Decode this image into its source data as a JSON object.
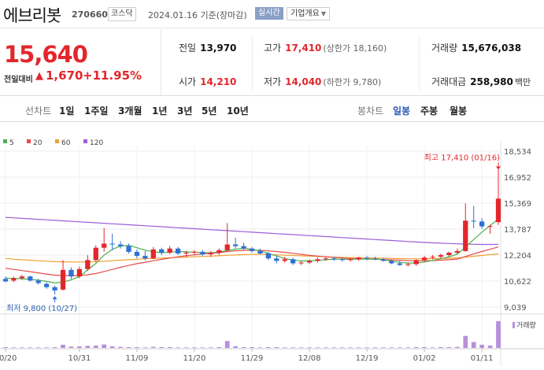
{
  "header": {
    "name": "에브리봇",
    "code": "270660",
    "market": "코스닥",
    "date_info": "2024.01.16 기준(장마감)",
    "realtime": "실시간",
    "company_info": "기업개요"
  },
  "quote": {
    "price": "15,640",
    "change_label": "전일대비",
    "change_arrow": "▲",
    "change": "1,670",
    "change_pct": "+11.95%",
    "prev_close": {
      "label": "전일",
      "value": "13,970"
    },
    "open": {
      "label": "시가",
      "value": "14,210"
    },
    "high": {
      "label": "고가",
      "value": "17,410",
      "sub": "(상한가 18,160)"
    },
    "low": {
      "label": "저가",
      "value": "14,040",
      "sub": "(하한가 9,780)"
    },
    "volume": {
      "label": "거래량",
      "value": "15,676,038"
    },
    "amount": {
      "label": "거래대금",
      "value": "258,980",
      "unit": "백만"
    }
  },
  "tabs": {
    "line_label": "선차트",
    "line_tabs": [
      "1일",
      "1주일",
      "3개월",
      "1년",
      "3년",
      "5년",
      "10년"
    ],
    "candle_label": "봉차트",
    "candle_tabs": [
      "일봉",
      "주봉",
      "월봉"
    ],
    "active_candle": "일봉"
  },
  "colors": {
    "up": "#e3262b",
    "down": "#2f6fd6",
    "ma5": "#4caf50",
    "ma20": "#e84b4b",
    "ma60": "#f0a030",
    "ma120": "#9b5fd8",
    "volume": "#b68fdc"
  },
  "chart_data": {
    "type": "candlestick",
    "legend": [
      {
        "name": "5",
        "color": "#4caf50"
      },
      {
        "name": "20",
        "color": "#e84b4b"
      },
      {
        "name": "60",
        "color": "#f0a030"
      },
      {
        "name": "120",
        "color": "#9b5fd8"
      }
    ],
    "y_ticks": [
      "18,534",
      "16,952",
      "15,369",
      "13,787",
      "12,204",
      "10,622",
      "9,039"
    ],
    "y_tick_values": [
      18534,
      16952,
      15369,
      13787,
      12204,
      10622,
      9039
    ],
    "ylim": [
      9039,
      18534
    ],
    "x_ticks": [
      "10/20",
      "10/31",
      "11/09",
      "11/20",
      "11/29",
      "12/08",
      "12/19",
      "01/02",
      "01/11"
    ],
    "x_tick_index": [
      0,
      9,
      16,
      23,
      30,
      37,
      44,
      51,
      58
    ],
    "high_label": "최고 17,410 (01/16)",
    "low_label": "최저 9,800 (10/27)",
    "volume_label": "거래량",
    "candles": [
      [
        10750,
        10900,
        10550,
        10600
      ],
      [
        10650,
        10900,
        10550,
        10800
      ],
      [
        10800,
        11000,
        10700,
        10900
      ],
      [
        10900,
        10950,
        10600,
        10650
      ],
      [
        10650,
        10750,
        10400,
        10500
      ],
      [
        10450,
        10550,
        10150,
        10250
      ],
      [
        10250,
        10350,
        9800,
        10050
      ],
      [
        10100,
        11900,
        10050,
        11300
      ],
      [
        11300,
        11450,
        10750,
        10900
      ],
      [
        10900,
        11500,
        10800,
        11350
      ],
      [
        11350,
        12200,
        11250,
        11900
      ],
      [
        11900,
        12800,
        11800,
        12650
      ],
      [
        12650,
        13850,
        12400,
        12900
      ],
      [
        12900,
        13500,
        12500,
        12850
      ],
      [
        12850,
        13050,
        12600,
        12750
      ],
      [
        12750,
        12900,
        12300,
        12400
      ],
      [
        12400,
        12550,
        12000,
        12150
      ],
      [
        12150,
        12450,
        11900,
        12000
      ],
      [
        12000,
        12700,
        11950,
        12550
      ],
      [
        12550,
        12650,
        12200,
        12350
      ],
      [
        12350,
        12750,
        12250,
        12600
      ],
      [
        12600,
        12700,
        12200,
        12300
      ],
      [
        12300,
        12450,
        12100,
        12350
      ],
      [
        12350,
        12500,
        12200,
        12400
      ],
      [
        12400,
        12500,
        12150,
        12250
      ],
      [
        12250,
        12450,
        12100,
        12350
      ],
      [
        12350,
        12600,
        12200,
        12500
      ],
      [
        12500,
        14150,
        12450,
        12850
      ],
      [
        12850,
        13250,
        12600,
        12750
      ],
      [
        12750,
        12950,
        12500,
        12600
      ],
      [
        12600,
        12700,
        12350,
        12450
      ],
      [
        12450,
        12600,
        12250,
        12300
      ],
      [
        12300,
        12400,
        11900,
        12000
      ],
      [
        12000,
        12150,
        11700,
        11850
      ],
      [
        11850,
        12100,
        11750,
        11950
      ],
      [
        11950,
        12050,
        11600,
        11700
      ],
      [
        11700,
        11850,
        11600,
        11750
      ],
      [
        11750,
        11950,
        11650,
        11850
      ],
      [
        11850,
        12050,
        11750,
        11950
      ],
      [
        11950,
        12100,
        11850,
        12000
      ],
      [
        12000,
        12100,
        11850,
        11950
      ],
      [
        11950,
        12050,
        11800,
        11900
      ],
      [
        11900,
        12000,
        11800,
        11950
      ],
      [
        11950,
        12100,
        11850,
        12050
      ],
      [
        12050,
        12150,
        11900,
        12000
      ],
      [
        12000,
        12100,
        11900,
        11950
      ],
      [
        11950,
        12050,
        11800,
        11850
      ],
      [
        11850,
        11950,
        11650,
        11700
      ],
      [
        11700,
        11850,
        11550,
        11600
      ],
      [
        11600,
        11750,
        11500,
        11650
      ],
      [
        11650,
        11950,
        11550,
        11900
      ],
      [
        11900,
        12150,
        11800,
        12050
      ],
      [
        12050,
        12200,
        11950,
        12100
      ],
      [
        12100,
        12300,
        12000,
        12200
      ],
      [
        12200,
        12400,
        12100,
        12350
      ],
      [
        12350,
        12600,
        12250,
        12450
      ],
      [
        12450,
        15350,
        12400,
        14300
      ],
      [
        14300,
        15200,
        13850,
        14250
      ],
      [
        14250,
        14450,
        13800,
        13950
      ],
      [
        13950,
        14050,
        13500,
        13970
      ],
      [
        14210,
        17410,
        14040,
        15640
      ]
    ],
    "volume": [
      0.03,
      0.02,
      0.02,
      0.02,
      0.02,
      0.02,
      0.03,
      0.12,
      0.05,
      0.06,
      0.08,
      0.09,
      0.13,
      0.06,
      0.04,
      0.03,
      0.03,
      0.02,
      0.04,
      0.03,
      0.03,
      0.02,
      0.02,
      0.02,
      0.02,
      0.02,
      0.03,
      0.26,
      0.06,
      0.03,
      0.03,
      0.02,
      0.03,
      0.03,
      0.02,
      0.02,
      0.02,
      0.02,
      0.02,
      0.02,
      0.02,
      0.02,
      0.02,
      0.02,
      0.02,
      0.02,
      0.02,
      0.02,
      0.02,
      0.02,
      0.03,
      0.03,
      0.02,
      0.03,
      0.03,
      0.04,
      0.45,
      0.22,
      0.12,
      0.09,
      1.0
    ],
    "ma5": [
      10800,
      10780,
      10760,
      10720,
      10680,
      10600,
      10500,
      10560,
      10700,
      10900,
      11300,
      11700,
      12200,
      12550,
      12750,
      12800,
      12650,
      12500,
      12400,
      12350,
      12380,
      12420,
      12400,
      12380,
      12350,
      12340,
      12380,
      12480,
      12560,
      12620,
      12560,
      12450,
      12300,
      12150,
      12000,
      11900,
      11850,
      11850,
      11880,
      11920,
      11950,
      11950,
      11950,
      11960,
      11970,
      11960,
      11920,
      11840,
      11760,
      11720,
      11720,
      11780,
      11880,
      11980,
      12100,
      12250,
      12700,
      13150,
      13600,
      14000,
      14400
    ],
    "ma20": [
      11400,
      11330,
      11260,
      11190,
      11120,
      11050,
      10980,
      10960,
      10950,
      10960,
      11000,
      11080,
      11200,
      11330,
      11460,
      11570,
      11680,
      11770,
      11860,
      11940,
      12020,
      12100,
      12160,
      12220,
      12270,
      12310,
      12350,
      12420,
      12460,
      12490,
      12500,
      12490,
      12460,
      12420,
      12370,
      12310,
      12250,
      12190,
      12140,
      12100,
      12060,
      12020,
      11990,
      11970,
      11960,
      11950,
      11930,
      11910,
      11890,
      11870,
      11860,
      11860,
      11870,
      11890,
      11920,
      11960,
      12120,
      12280,
      12420,
      12560,
      12700
    ],
    "ma60": [
      12000,
      11950,
      11920,
      11890,
      11860,
      11830,
      11800,
      11790,
      11780,
      11780,
      11790,
      11800,
      11830,
      11860,
      11890,
      11920,
      11950,
      11980,
      12000,
      12020,
      12040,
      12060,
      12080,
      12100,
      12120,
      12140,
      12160,
      12190,
      12210,
      12230,
      12240,
      12240,
      12230,
      12220,
      12200,
      12180,
      12160,
      12140,
      12120,
      12100,
      12080,
      12060,
      12050,
      12040,
      12030,
      12020,
      12010,
      12000,
      11990,
      11980,
      11980,
      11980,
      11990,
      12000,
      12010,
      12030,
      12080,
      12130,
      12180,
      12230,
      12280
    ],
    "ma120": [
      14500,
      14470,
      14440,
      14410,
      14380,
      14350,
      14320,
      14290,
      14260,
      14230,
      14200,
      14170,
      14140,
      14110,
      14080,
      14050,
      14020,
      13990,
      13960,
      13930,
      13900,
      13870,
      13840,
      13810,
      13780,
      13750,
      13720,
      13690,
      13660,
      13630,
      13600,
      13570,
      13540,
      13510,
      13480,
      13450,
      13420,
      13390,
      13360,
      13330,
      13300,
      13270,
      13240,
      13210,
      13180,
      13150,
      13120,
      13090,
      13060,
      13030,
      13000,
      12970,
      12950,
      12930,
      12910,
      12890,
      12870,
      12860,
      12850,
      12850,
      12860
    ]
  }
}
